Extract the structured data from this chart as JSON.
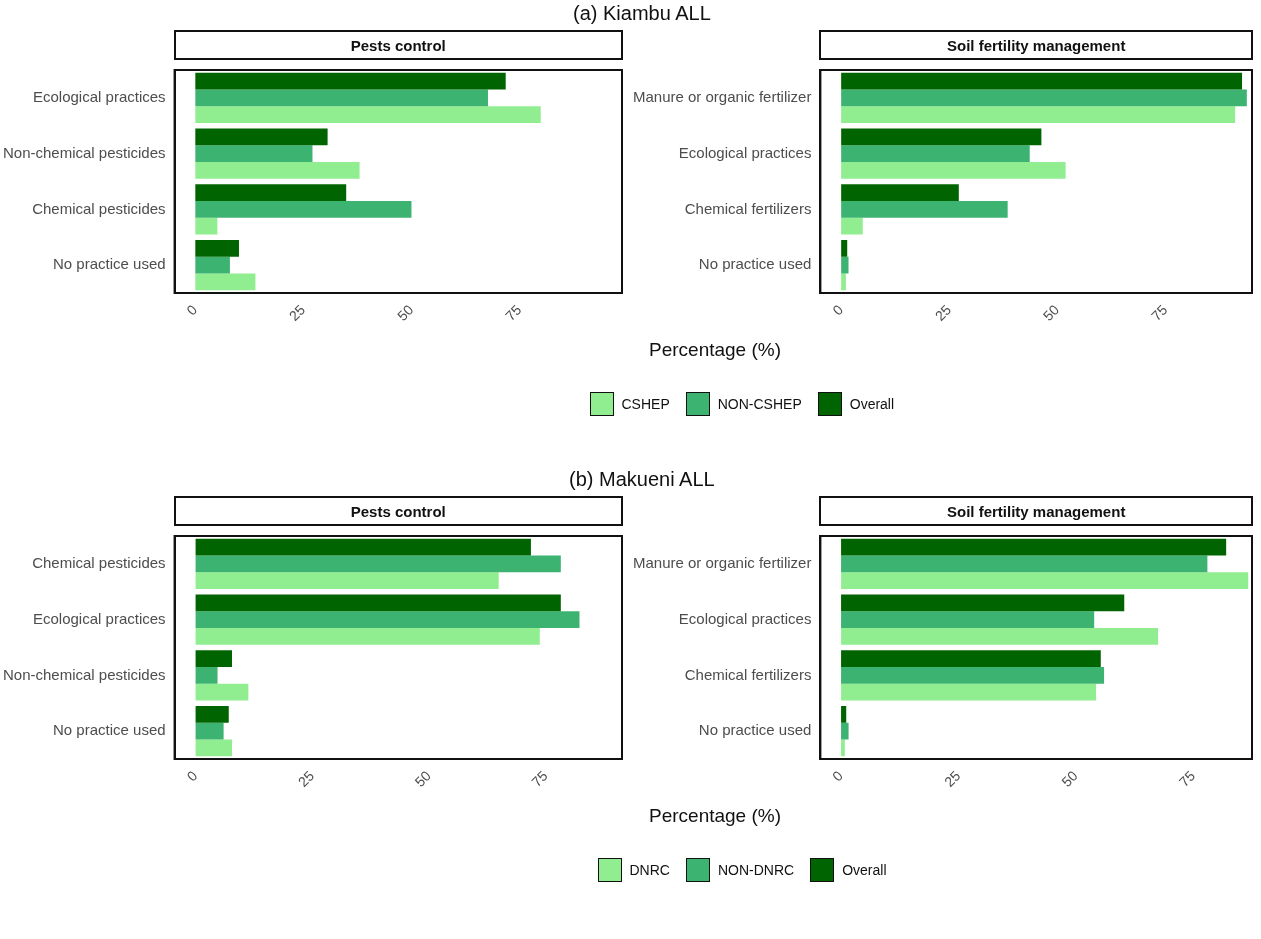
{
  "chart_data": [
    {
      "type": "bar",
      "orientation": "horizontal",
      "subtitle": "(a)  Kiambu ALL",
      "title": "Pests control",
      "xlabel": "Percentage (%)",
      "legend": "bottom",
      "categories": [
        "Ecological practices",
        "Non-chemical pesticides",
        "Chemical pesticides",
        "No practice used"
      ],
      "xlim": [
        -4.8,
        98.7
      ],
      "xticks": [
        0,
        25,
        50,
        75
      ],
      "series": [
        {
          "name": "CSHEP",
          "color": "#90ee90",
          "values": [
            79.9,
            38.0,
            5.1,
            13.9
          ]
        },
        {
          "name": "NON-CSHEP",
          "color": "#3cb371",
          "values": [
            67.7,
            27.1,
            50.0,
            8.0
          ]
        },
        {
          "name": "Overall",
          "color": "#006400",
          "values": [
            71.8,
            30.6,
            34.9,
            10.1
          ]
        }
      ]
    },
    {
      "type": "bar",
      "orientation": "horizontal",
      "title": "Soil fertility management",
      "categories": [
        "Manure or organic fertilizer",
        "Ecological practices",
        "Chemical fertilizers",
        "No practice used"
      ],
      "xlim": [
        -4.8,
        95
      ],
      "xticks": [
        0,
        25,
        50,
        75
      ],
      "series": [
        {
          "color": "#90ee90",
          "values": [
            91.1,
            51.9,
            5.0,
            1.1
          ]
        },
        {
          "color": "#3cb371",
          "values": [
            93.8,
            43.6,
            38.5,
            1.7
          ]
        },
        {
          "color": "#006400",
          "values": [
            92.7,
            46.3,
            27.2,
            1.4
          ]
        }
      ]
    },
    {
      "type": "bar",
      "orientation": "horizontal",
      "subtitle": "(b)  Makueni ALL",
      "title": "Pests control",
      "xlabel": "Percentage (%)",
      "legend": "bottom",
      "categories": [
        "Chemical pesticides",
        "Ecological practices",
        "Non-chemical pesticides",
        "No practice used"
      ],
      "xlim": [
        -4.5,
        91.3
      ],
      "xticks": [
        0,
        25,
        50,
        75
      ],
      "series": [
        {
          "name": "DNRC",
          "color": "#90ee90",
          "values": [
            64.9,
            73.7,
            11.3,
            7.8
          ]
        },
        {
          "name": "NON-DNRC",
          "color": "#3cb371",
          "values": [
            78.2,
            82.2,
            4.7,
            6.0
          ]
        },
        {
          "name": "Overall",
          "color": "#006400",
          "values": [
            71.8,
            78.2,
            7.8,
            7.1
          ]
        }
      ]
    },
    {
      "type": "bar",
      "orientation": "horizontal",
      "title": "Soil fertility management",
      "categories": [
        "Manure or organic fertilizer",
        "Ecological practices",
        "Chemical fertilizers",
        "No practice used"
      ],
      "xlim": [
        -4.4,
        87.5
      ],
      "xticks": [
        0,
        25,
        50,
        75
      ],
      "series": [
        {
          "color": "#90ee90",
          "values": [
            86.7,
            67.5,
            54.3,
            0.8
          ]
        },
        {
          "color": "#3cb371",
          "values": [
            78.0,
            53.9,
            56.0,
            1.6
          ]
        },
        {
          "color": "#006400",
          "values": [
            82.0,
            60.3,
            55.3,
            1.1
          ]
        }
      ]
    }
  ]
}
